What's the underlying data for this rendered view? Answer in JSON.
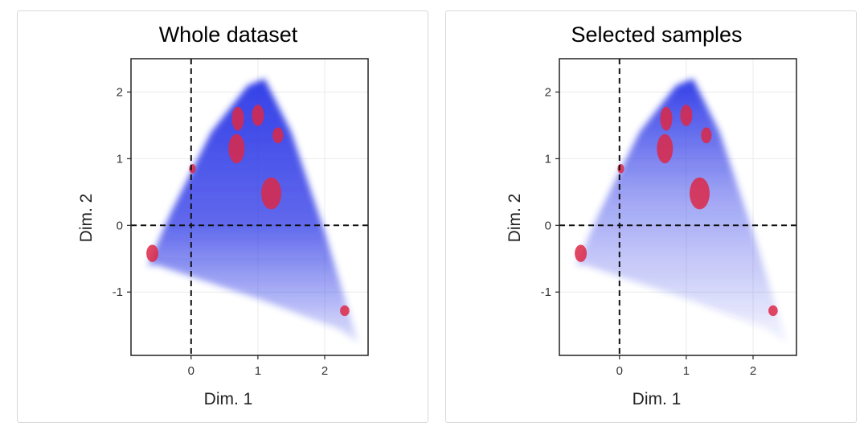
{
  "chart_data": [
    {
      "type": "scatter",
      "title": "Whole dataset",
      "xlabel": "Dim. 1",
      "ylabel": "Dim. 2",
      "xlim": [
        -0.9,
        2.65
      ],
      "ylim": [
        -1.95,
        2.5
      ],
      "xticks": [
        0,
        1,
        2
      ],
      "yticks": [
        -1,
        0,
        1,
        2
      ],
      "reference_lines": {
        "x": 0,
        "y": 0,
        "style": "dashed"
      },
      "grid": true,
      "density_outline": [
        [
          -0.65,
          -0.6
        ],
        [
          -0.3,
          0.2
        ],
        [
          0.3,
          1.4
        ],
        [
          0.85,
          2.1
        ],
        [
          1.1,
          2.2
        ],
        [
          1.5,
          1.4
        ],
        [
          2.0,
          -0.1
        ],
        [
          2.5,
          -1.75
        ],
        [
          2.2,
          -1.55
        ],
        [
          1.0,
          -1.1
        ],
        [
          -0.5,
          -0.6
        ]
      ],
      "colors": {
        "density": "#2a36e6",
        "highlight": "#dc2846",
        "grid": "#ebebeb"
      },
      "highlight_regions": [
        {
          "x": 0.7,
          "y": 1.6,
          "rx": 0.09,
          "ry": 0.18
        },
        {
          "x": 0.68,
          "y": 1.15,
          "rx": 0.12,
          "ry": 0.22
        },
        {
          "x": 1.0,
          "y": 1.65,
          "rx": 0.09,
          "ry": 0.16
        },
        {
          "x": 1.3,
          "y": 1.35,
          "rx": 0.08,
          "ry": 0.12
        },
        {
          "x": 1.2,
          "y": 0.48,
          "rx": 0.15,
          "ry": 0.24
        },
        {
          "x": 0.02,
          "y": 0.85,
          "rx": 0.05,
          "ry": 0.07
        },
        {
          "x": -0.58,
          "y": -0.42,
          "rx": 0.09,
          "ry": 0.13
        },
        {
          "x": 2.3,
          "y": -1.28,
          "rx": 0.07,
          "ry": 0.08
        }
      ]
    },
    {
      "type": "scatter",
      "title": "Selected samples",
      "xlabel": "Dim. 1",
      "ylabel": "Dim. 2",
      "xlim": [
        -0.9,
        2.65
      ],
      "ylim": [
        -1.95,
        2.5
      ],
      "xticks": [
        0,
        1,
        2
      ],
      "yticks": [
        -1,
        0,
        1,
        2
      ],
      "reference_lines": {
        "x": 0,
        "y": 0,
        "style": "dashed"
      },
      "grid": true,
      "density_outline": [
        [
          -0.65,
          -0.6
        ],
        [
          -0.3,
          0.2
        ],
        [
          0.3,
          1.4
        ],
        [
          0.85,
          2.1
        ],
        [
          1.1,
          2.2
        ],
        [
          1.5,
          1.4
        ],
        [
          2.0,
          -0.1
        ],
        [
          2.5,
          -1.75
        ],
        [
          2.2,
          -1.55
        ],
        [
          1.0,
          -1.1
        ],
        [
          -0.5,
          -0.6
        ]
      ],
      "colors": {
        "density": "#2a36e6",
        "highlight": "#dc2846",
        "grid": "#ebebeb"
      },
      "highlight_regions": [
        {
          "x": 0.7,
          "y": 1.6,
          "rx": 0.09,
          "ry": 0.18
        },
        {
          "x": 0.68,
          "y": 1.15,
          "rx": 0.12,
          "ry": 0.22
        },
        {
          "x": 1.0,
          "y": 1.65,
          "rx": 0.09,
          "ry": 0.16
        },
        {
          "x": 1.3,
          "y": 1.35,
          "rx": 0.08,
          "ry": 0.12
        },
        {
          "x": 1.2,
          "y": 0.48,
          "rx": 0.15,
          "ry": 0.24
        },
        {
          "x": 0.02,
          "y": 0.85,
          "rx": 0.05,
          "ry": 0.07
        },
        {
          "x": -0.58,
          "y": -0.42,
          "rx": 0.09,
          "ry": 0.13
        },
        {
          "x": 2.3,
          "y": -1.28,
          "rx": 0.07,
          "ry": 0.08
        }
      ]
    }
  ]
}
